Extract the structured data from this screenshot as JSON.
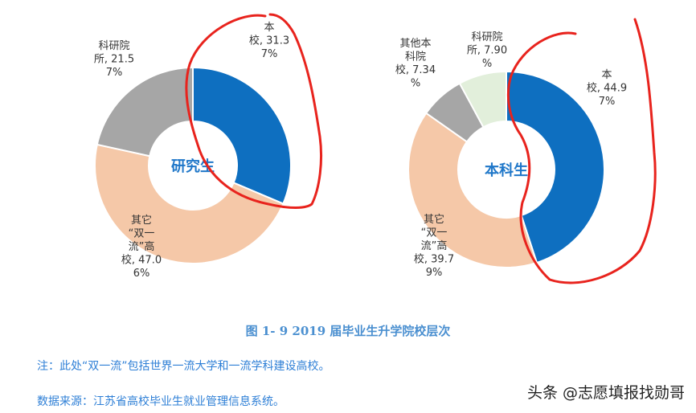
{
  "chart_data": [
    {
      "type": "pie",
      "center_label": "研究生",
      "categories": [
        "本校",
        "其它“双一流”高校",
        "科研院所"
      ],
      "values": [
        31.37,
        47.06,
        21.57
      ],
      "labels": [
        [
          "本",
          "校, 31.3",
          "7%"
        ],
        [
          "其它",
          "“双一",
          "流”高",
          "校, 47.0",
          "6%"
        ],
        [
          "科研院",
          "所, 21.5",
          "7%"
        ]
      ],
      "colors": [
        "#0e6fc0",
        "#f5c8a8",
        "#a6a6a6"
      ]
    },
    {
      "type": "pie",
      "center_label": "本科生",
      "categories": [
        "本校",
        "其它“双一流”高校",
        "其他本科院校",
        "科研院所"
      ],
      "values": [
        44.97,
        39.79,
        7.34,
        7.9
      ],
      "labels": [
        [
          "本",
          "校, 44.9",
          "7%"
        ],
        [
          "其它",
          "“双一",
          "流”高",
          "校, 39.7",
          "9%"
        ],
        [
          "其他本",
          "科院",
          "校, 7.34",
          "%"
        ],
        [
          "科研院",
          "所, 7.90",
          "%"
        ]
      ],
      "colors": [
        "#0e6fc0",
        "#f5c8a8",
        "#a6a6a6",
        "#e2efdb"
      ]
    }
  ],
  "caption": "图 1- 9 2019 届毕业生升学院校层次",
  "notes": {
    "note1": "注：此处“双一流”包括世界一流大学和一流学科建设高校。",
    "note2": "数据来源：江苏省高校毕业生就业管理信息系统。"
  },
  "watermark": "头条 @志愿填报找勋哥",
  "annotation_color": "#e8231d"
}
